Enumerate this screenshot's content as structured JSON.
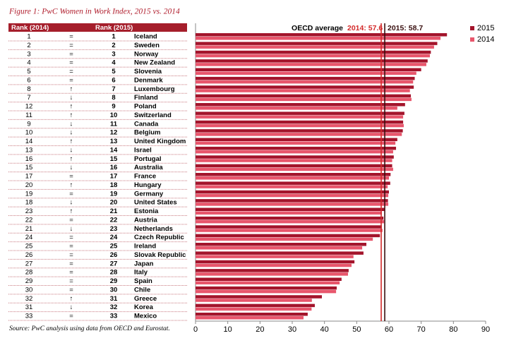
{
  "chart_data": {
    "type": "bar",
    "orientation": "horizontal",
    "title": "Figure 1: PwC Women in Work Index, 2015 vs. 2014",
    "source": "Source: PwC analysis using data from OECD and Eurostat.",
    "table": {
      "rank_2014_header": "Rank (2014)",
      "rank_2015_header": "Rank (2015)",
      "rank_2014": [
        1,
        2,
        3,
        4,
        5,
        6,
        8,
        7,
        12,
        11,
        9,
        10,
        14,
        13,
        16,
        15,
        17,
        20,
        19,
        18,
        23,
        22,
        21,
        24,
        25,
        26,
        27,
        28,
        29,
        30,
        32,
        31,
        33
      ],
      "change": [
        "=",
        "=",
        "=",
        "=",
        "=",
        "=",
        "↑",
        "↓",
        "↑",
        "↑",
        "↓",
        "↓",
        "↑",
        "↓",
        "↑",
        "↓",
        "=",
        "↑",
        "=",
        "↓",
        "↑",
        "=",
        "↓",
        "=",
        "=",
        "=",
        "=",
        "=",
        "=",
        "=",
        "↑",
        "↓",
        "="
      ],
      "rank_2015": [
        1,
        2,
        3,
        4,
        5,
        6,
        7,
        8,
        9,
        10,
        11,
        12,
        13,
        14,
        15,
        16,
        17,
        18,
        19,
        20,
        21,
        22,
        23,
        24,
        25,
        26,
        27,
        28,
        29,
        30,
        31,
        32,
        33
      ]
    },
    "categories": [
      "Iceland",
      "Sweden",
      "Norway",
      "New Zealand",
      "Slovenia",
      "Denmark",
      "Luxembourg",
      "Finland",
      "Poland",
      "Switzerland",
      "Canada",
      "Belgium",
      "United Kingdom",
      "Israel",
      "Portugal",
      "Australia",
      "France",
      "Hungary",
      "Germany",
      "United States",
      "Estonia",
      "Austria",
      "Netherlands",
      "Czech Republic",
      "Ireland",
      "Slovak Republic",
      "Japan",
      "Italy",
      "Spain",
      "Chile",
      "Greece",
      "Korea",
      "Mexico"
    ],
    "series": [
      {
        "name": "2015",
        "color": "#a3142b",
        "values": [
          78,
          75,
          73,
          72,
          70,
          68,
          67.7,
          66.8,
          65,
          64.8,
          64.4,
          64.3,
          62.6,
          62.2,
          61.5,
          61,
          60.5,
          60.4,
          60,
          59.7,
          58.7,
          58.3,
          57.8,
          57.2,
          53,
          52.1,
          49.3,
          47.5,
          45.3,
          43.8,
          39.2,
          37,
          34.8
        ]
      },
      {
        "name": "2014",
        "color": "#e8566c",
        "values": [
          76,
          74,
          72.7,
          71.6,
          68.5,
          67.5,
          66.5,
          67,
          62.6,
          64.4,
          64.6,
          64,
          62,
          61.3,
          61,
          61.3,
          60,
          59.6,
          59.8,
          59.8,
          57.8,
          58.5,
          58,
          55,
          51.7,
          49,
          48.4,
          47.3,
          44.7,
          43.6,
          36.1,
          36,
          33.5
        ]
      }
    ],
    "reference_title": "OECD average",
    "reference_lines": [
      {
        "label": "2014: 57.6",
        "value": 57.6,
        "color": "#d42a2a"
      },
      {
        "label": "2015: 58.7",
        "value": 58.7,
        "color": "#3a1010"
      }
    ],
    "xlim": [
      0,
      90
    ],
    "xticks": [
      0,
      10,
      20,
      30,
      40,
      50,
      60,
      70,
      80,
      90
    ],
    "legend": "top-right"
  }
}
